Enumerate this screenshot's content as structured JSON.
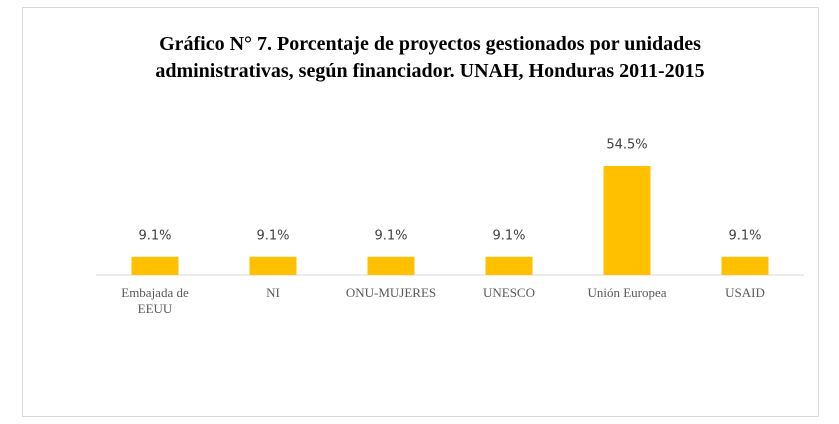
{
  "chart_data": {
    "type": "bar",
    "title": "Gráfico N° 7. Porcentaje de proyectos gestionados por unidades administrativas, según financiador. UNAH, Honduras 2011-2015",
    "categories": [
      "Embajada de EEUU",
      "NI",
      "ONU-MUJERES",
      "UNESCO",
      "Unión Europea",
      "USAID"
    ],
    "values": [
      9.1,
      9.1,
      9.1,
      9.1,
      54.5,
      9.1
    ],
    "value_labels": [
      "9.1%",
      "9.1%",
      "9.1%",
      "9.1%",
      "54.5%",
      "9.1%"
    ],
    "color": "#ffc000",
    "ylim": [
      0,
      60
    ]
  }
}
